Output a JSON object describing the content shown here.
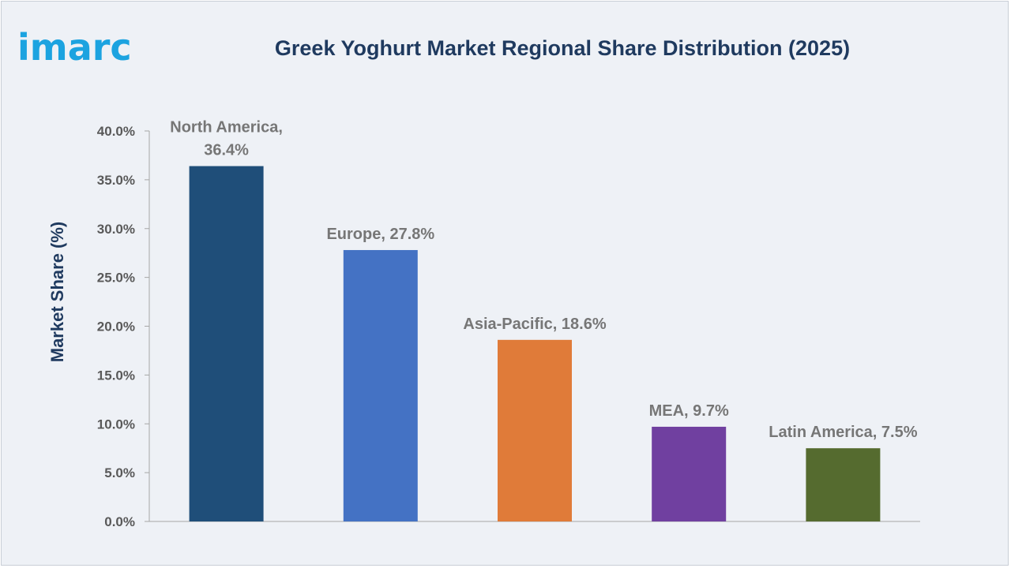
{
  "brand": {
    "logo_text": "imarc",
    "logo_color": "#1ca3e0"
  },
  "chart_data": {
    "type": "bar",
    "title": "Greek Yoghurt Market Regional Share Distribution (2025)",
    "ylabel": "Market Share (%)",
    "xlabel": "",
    "ylim": [
      0,
      40
    ],
    "yticks": [
      "0.0%",
      "5.0%",
      "10.0%",
      "15.0%",
      "20.0%",
      "25.0%",
      "30.0%",
      "35.0%",
      "40.0%"
    ],
    "ytick_values": [
      0,
      5,
      10,
      15,
      20,
      25,
      30,
      35,
      40
    ],
    "grid": false,
    "legend": "none",
    "categories": [
      "North America",
      "Europe",
      "Asia-Pacific",
      "MEA",
      "Latin America"
    ],
    "values": [
      36.4,
      27.8,
      18.6,
      9.7,
      7.5
    ],
    "data_labels": [
      "North America,\n36.4%",
      "Europe, 27.8%",
      "Asia-Pacific, 18.6%",
      "MEA, 9.7%",
      "Latin America, 7.5%"
    ],
    "colors": [
      "#1f4e79",
      "#4472c4",
      "#e07b39",
      "#7040a0",
      "#556b2f"
    ]
  }
}
